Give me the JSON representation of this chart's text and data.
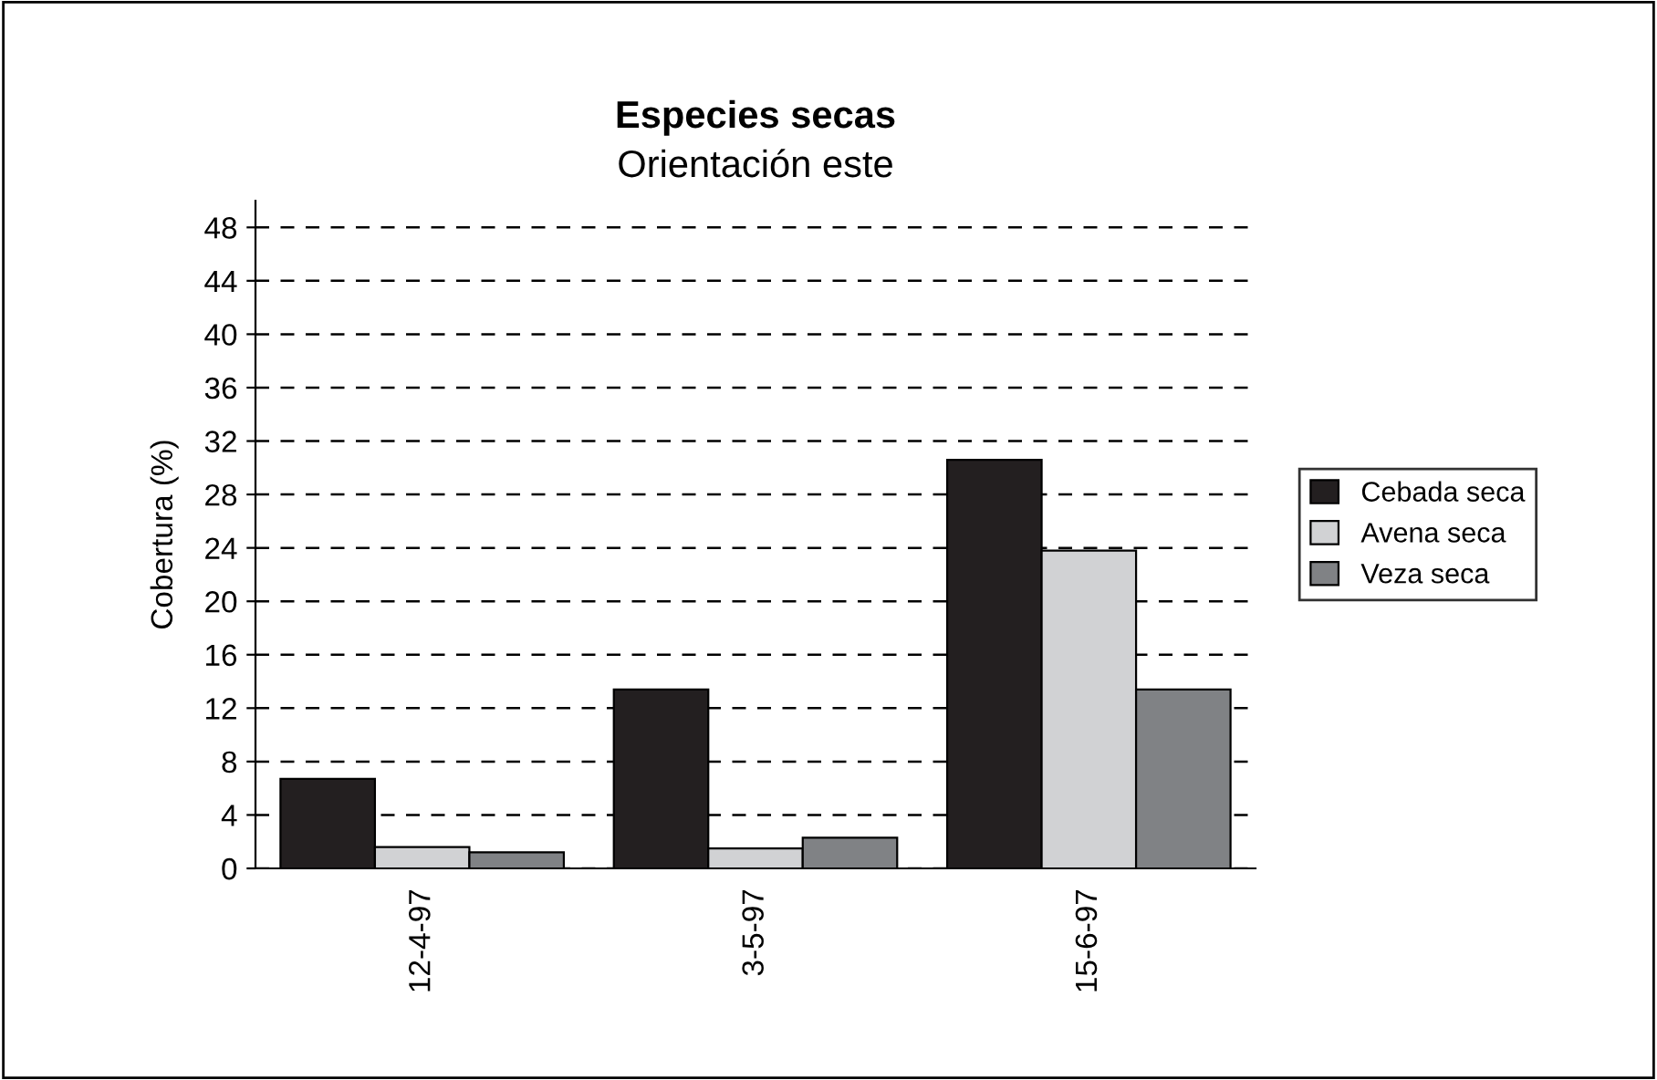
{
  "chart_data": {
    "type": "bar",
    "title": "Especies secas",
    "subtitle": "Orientación este",
    "ylabel": "Cobertura (%)",
    "categories": [
      "12-4-97",
      "3-5-97",
      "15-6-97"
    ],
    "series": [
      {
        "name": "Cebada seca",
        "color": "#231f20",
        "values": [
          6.7,
          13.4,
          30.6
        ]
      },
      {
        "name": "Avena seca",
        "color": "#d1d2d4",
        "values": [
          1.6,
          1.5,
          23.8
        ]
      },
      {
        "name": "Veza seca",
        "color": "#808285",
        "values": [
          1.2,
          2.3,
          13.4
        ]
      }
    ],
    "ylim": [
      0,
      50
    ],
    "yticks": [
      0,
      4,
      8,
      12,
      16,
      20,
      24,
      28,
      32,
      36,
      40,
      44,
      48
    ],
    "grid": "y",
    "line_style": "dashed",
    "legend": "right"
  }
}
